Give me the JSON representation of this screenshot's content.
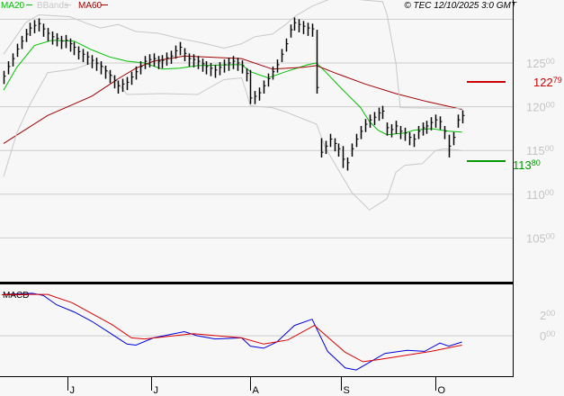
{
  "header": {
    "legend": [
      {
        "label": "MA20",
        "color": "#00c000"
      },
      {
        "label": "BBands",
        "color": "#c8c8c8"
      },
      {
        "label": "MA60",
        "color": "#a00000"
      }
    ],
    "copyright": "© TEC 12/10/2025 3:0 GMT"
  },
  "chart_data": [
    {
      "type": "ohlc-bar",
      "ylim": [
        100,
        132.2
      ],
      "y_ticks": [
        {
          "main": "125",
          "dec": "00",
          "value": 125
        },
        {
          "main": "120",
          "dec": "00",
          "value": 120
        },
        {
          "main": "115",
          "dec": "00",
          "value": 115
        },
        {
          "main": "110",
          "dec": "00",
          "value": 110
        },
        {
          "main": "105",
          "dec": "00",
          "value": 105
        }
      ],
      "gridlines": [
        105,
        110,
        115,
        120,
        125,
        130
      ],
      "x_ticks": [
        {
          "label": "J",
          "bar": 14.5
        },
        {
          "label": "J",
          "bar": 33.5
        },
        {
          "label": "A",
          "bar": 56
        },
        {
          "label": "S",
          "bar": 76.5
        },
        {
          "label": "O",
          "bar": 98
        }
      ],
      "close": [
        123.5,
        124.6,
        125.5,
        126.6,
        127.5,
        128.3,
        129,
        129.3,
        129.5,
        128.9,
        128.4,
        128,
        127.8,
        127.5,
        127.6,
        127.2,
        126.8,
        126.3,
        126,
        125.7,
        125.3,
        125,
        124.6,
        124.1,
        123.6,
        123,
        122.4,
        122.6,
        122.8,
        123.4,
        124,
        124.6,
        125.2,
        125.4,
        125.5,
        125.2,
        125.3,
        125.6,
        125.8,
        126.4,
        126.8,
        126.1,
        125.5,
        125.4,
        125.2,
        124.9,
        124.6,
        124.4,
        124.2,
        124.5,
        124.8,
        125,
        125.2,
        125,
        124.7,
        123.8,
        121,
        121.2,
        121.6,
        122.4,
        123.2,
        124,
        124.8,
        126,
        127.2,
        128.8,
        129.6,
        129.4,
        129.2,
        129,
        128.9,
        122.2,
        114.8,
        115.5,
        116.3,
        115.8,
        115.2,
        114,
        113.6,
        115.2,
        116.3,
        117.2,
        118,
        118.5,
        118.8,
        119.3,
        119.5,
        117.6,
        117.4,
        117.8,
        117.2,
        117,
        116.5,
        116.3,
        117.2,
        117.6,
        117.8,
        118.2,
        118.5,
        118.3,
        117.2,
        115.5,
        116.5,
        118.5,
        119
      ],
      "range_overrides": [
        {
          "bar": 56,
          "low": 120.3,
          "high": 124.2
        },
        {
          "bar": 71,
          "low": 121.5,
          "high": 128.8
        },
        {
          "bar": 72,
          "low": 114.2,
          "high": 116.4
        },
        {
          "bar": 77,
          "low": 113.0,
          "high": 115.5
        },
        {
          "bar": 101,
          "low": 114.2,
          "high": 116.8
        }
      ],
      "series": [
        {
          "name": "MA20",
          "color": "#00c000",
          "points": [
            [
              0,
              121.9
            ],
            [
              3,
              124.5
            ],
            [
              7,
              127
            ],
            [
              11,
              127.6
            ],
            [
              16,
              127.5
            ],
            [
              20,
              126.5
            ],
            [
              24,
              125.7
            ],
            [
              28,
              125.2
            ],
            [
              32,
              125
            ],
            [
              36,
              124.3
            ],
            [
              40,
              124.4
            ],
            [
              44,
              124.7
            ],
            [
              52,
              124.8
            ],
            [
              54,
              124.8
            ],
            [
              56,
              124
            ],
            [
              60,
              123.3
            ],
            [
              64,
              124
            ],
            [
              69,
              124.8
            ],
            [
              71,
              125
            ],
            [
              73,
              124
            ],
            [
              77,
              121.9
            ],
            [
              81,
              119.9
            ],
            [
              83,
              118.3
            ],
            [
              85,
              117.3
            ],
            [
              87,
              116.8
            ],
            [
              91,
              117
            ],
            [
              93,
              117.3
            ],
            [
              97,
              117.5
            ],
            [
              101,
              117.2
            ],
            [
              104,
              117.1
            ]
          ]
        },
        {
          "name": "MA60",
          "color": "#a00000",
          "points": [
            [
              0,
              115.8
            ],
            [
              10,
              119
            ],
            [
              20,
              121.2
            ],
            [
              26,
              123.2
            ],
            [
              30,
              124.4
            ],
            [
              34,
              125.2
            ],
            [
              41,
              125.8
            ],
            [
              54,
              125.5
            ],
            [
              61,
              124.3
            ],
            [
              68,
              124.5
            ],
            [
              71,
              124.7
            ],
            [
              75,
              123.9
            ],
            [
              82,
              122.6
            ],
            [
              89,
              121.5
            ],
            [
              96,
              120.6
            ],
            [
              104,
              119.7
            ]
          ]
        },
        {
          "name": "BBands",
          "color": "#c8c8c8",
          "points": [
            [
              0,
              126
            ],
            [
              5,
              129.6
            ],
            [
              8,
              130.5
            ],
            [
              15,
              130.3
            ],
            [
              19,
              129.5
            ],
            [
              22,
              129
            ],
            [
              26,
              129.4
            ],
            [
              30,
              128.6
            ],
            [
              35,
              128.4
            ],
            [
              40,
              127.8
            ],
            [
              45,
              127.3
            ],
            [
              50,
              126.7
            ],
            [
              54,
              127.2
            ],
            [
              57,
              128
            ],
            [
              61,
              128.3
            ],
            [
              64,
              129.4
            ],
            [
              66,
              130.3
            ],
            [
              70,
              131.5
            ],
            [
              75,
              132.5
            ],
            [
              86,
              132
            ],
            [
              87,
              130.5
            ],
            [
              89,
              125
            ],
            [
              90,
              119.9
            ],
            [
              104,
              119.8
            ]
          ]
        },
        {
          "name": "BBands",
          "color": "#c8c8c8",
          "points": [
            [
              0,
              112
            ],
            [
              3,
              117
            ],
            [
              6,
              120.3
            ],
            [
              10,
              123.9
            ],
            [
              16,
              124.3
            ],
            [
              20,
              125
            ],
            [
              22,
              124.9
            ],
            [
              25,
              123.3
            ],
            [
              28,
              121.4
            ],
            [
              36,
              121.5
            ],
            [
              44,
              121.4
            ],
            [
              50,
              123.1
            ],
            [
              54,
              123.3
            ],
            [
              55,
              121.8
            ],
            [
              56,
              120.1
            ],
            [
              61,
              119.9
            ],
            [
              64,
              119.4
            ],
            [
              69,
              118.4
            ],
            [
              71,
              118
            ],
            [
              73,
              115.3
            ],
            [
              75,
              113.6
            ],
            [
              79,
              110.2
            ],
            [
              83,
              108.2
            ],
            [
              87,
              109.5
            ],
            [
              89,
              112.5
            ],
            [
              91,
              113.3
            ],
            [
              95,
              113.5
            ],
            [
              98,
              115
            ],
            [
              100,
              115.2
            ],
            [
              104,
              115
            ]
          ]
        }
      ],
      "levels": [
        {
          "main": "122",
          "dec": "79",
          "value": 122.79,
          "color": "#cc0000"
        },
        {
          "main": "113",
          "dec": "80",
          "value": 113.8,
          "color": "#009900"
        }
      ]
    },
    {
      "type": "line",
      "title": "MACD",
      "ylim": [
        -3.9,
        4.96
      ],
      "y_ticks": [
        {
          "main": "2",
          "dec": "00",
          "value": 2
        },
        {
          "main": "0",
          "dec": "00",
          "value": 0
        }
      ],
      "series": [
        {
          "color": "#0000dd",
          "points": [
            [
              0,
              4
            ],
            [
              6.5,
              4.1
            ],
            [
              9,
              3.9
            ],
            [
              12,
              3
            ],
            [
              16,
              2.3
            ],
            [
              20,
              1.4
            ],
            [
              24,
              0.3
            ],
            [
              28,
              -0.8
            ],
            [
              30,
              -0.9
            ],
            [
              34,
              -0.2
            ],
            [
              41,
              0.4
            ],
            [
              44,
              0
            ],
            [
              48,
              -0.3
            ],
            [
              54,
              -0.2
            ],
            [
              56,
              -1
            ],
            [
              59,
              -1.2
            ],
            [
              62,
              -0.6
            ],
            [
              66,
              1
            ],
            [
              70,
              1.6
            ],
            [
              73.5,
              -1.5
            ],
            [
              77.5,
              -3.1
            ],
            [
              80,
              -3.3
            ],
            [
              86.5,
              -1.7
            ],
            [
              91.5,
              -1.4
            ],
            [
              95.5,
              -1.5
            ],
            [
              99,
              -0.7
            ],
            [
              101,
              -1
            ],
            [
              104,
              -0.6
            ]
          ]
        },
        {
          "color": "#dd0000",
          "points": [
            [
              0,
              4
            ],
            [
              10,
              4
            ],
            [
              15.5,
              3.2
            ],
            [
              24.5,
              1.1
            ],
            [
              29,
              -0.2
            ],
            [
              32,
              -0.3
            ],
            [
              43,
              0.2
            ],
            [
              54,
              -0.2
            ],
            [
              59,
              -0.8
            ],
            [
              64.5,
              -0.4
            ],
            [
              70.5,
              1
            ],
            [
              77.5,
              -1.6
            ],
            [
              81.5,
              -2.5
            ],
            [
              85,
              -2.3
            ],
            [
              97,
              -1.5
            ],
            [
              104,
              -0.9
            ]
          ]
        }
      ]
    }
  ]
}
